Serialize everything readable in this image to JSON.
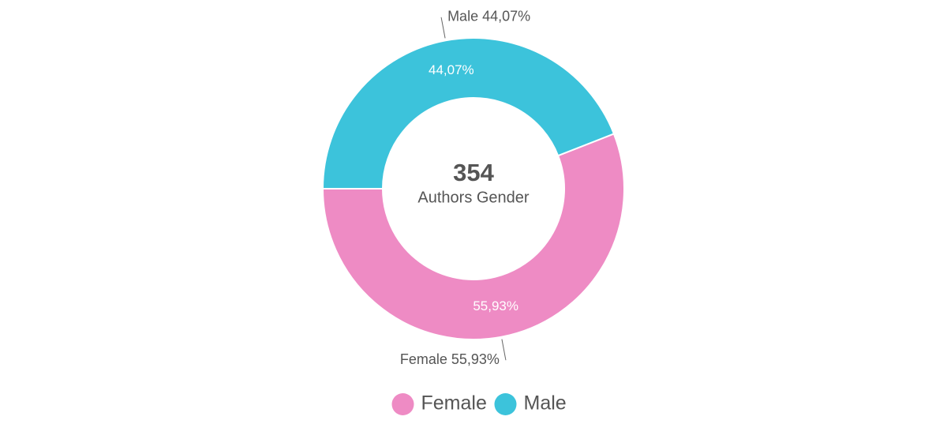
{
  "chart_data": {
    "type": "pie",
    "donut": true,
    "center": {
      "total": "354",
      "caption": "Authors Gender"
    },
    "slices": [
      {
        "label": "Female",
        "value": 55.93,
        "value_label": "55,93%",
        "callout": "Female 55,93%",
        "color": "#ee8bc4"
      },
      {
        "label": "Male",
        "value": 44.07,
        "value_label": "44,07%",
        "callout": "Male 44,07%",
        "color": "#3cc3db"
      }
    ],
    "legend": {
      "placement": "bottom",
      "items": [
        "Female",
        "Male"
      ]
    }
  }
}
